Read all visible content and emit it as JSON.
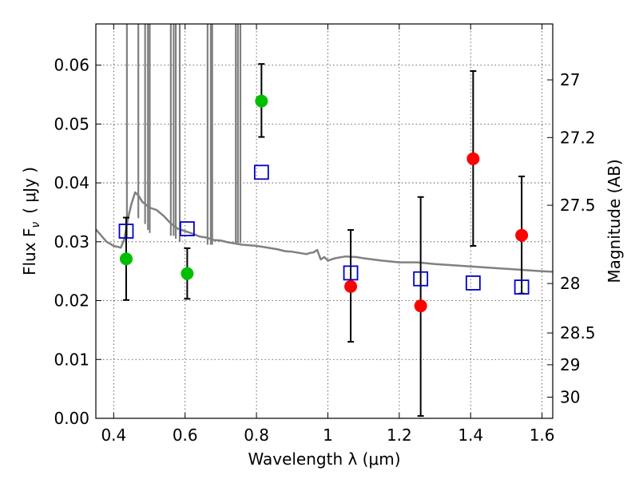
{
  "chart_data": {
    "type": "scatter",
    "xlabel": "Wavelength  λ (μm)",
    "ylabel": "Flux  F",
    "ylabel_sub": "ν",
    "ylabel_unit": "( μJy )",
    "y2label": "Magnitude (AB)",
    "xlim": [
      0.35,
      1.63
    ],
    "ylim": [
      0.0,
      0.067
    ],
    "grid": true,
    "x_ticks": [
      0.4,
      0.6,
      0.8,
      1.0,
      1.2,
      1.4,
      1.6
    ],
    "x_tick_labels": [
      "0.4",
      "0.6",
      "0.8",
      "1",
      "1.2",
      "1.4",
      "1.6"
    ],
    "y_ticks": [
      0.0,
      0.01,
      0.02,
      0.03,
      0.04,
      0.05,
      0.06
    ],
    "y_tick_labels": [
      "0.00",
      "0.01",
      "0.02",
      "0.03",
      "0.04",
      "0.05",
      "0.06"
    ],
    "y2_ticks": [
      {
        "label": "27",
        "flux": 0.0575
      },
      {
        "label": "27.2",
        "flux": 0.0477
      },
      {
        "label": "27.5",
        "flux": 0.0362
      },
      {
        "label": "28",
        "flux": 0.0229
      },
      {
        "label": "28.5",
        "flux": 0.0145
      },
      {
        "label": "29",
        "flux": 0.0091
      },
      {
        "label": "30",
        "flux": 0.0036
      }
    ],
    "colors": {
      "green": "#00bf00",
      "red": "#ff0000",
      "blue": "#0000cc",
      "model": "#808080",
      "errorbar": "#000000"
    },
    "series": [
      {
        "marker": "circle",
        "color": "green",
        "points": [
          {
            "x": 0.435,
            "y": 0.0271,
            "err_low": 0.0201,
            "err_high": 0.0341
          },
          {
            "x": 0.606,
            "y": 0.0246,
            "err_low": 0.0203,
            "err_high": 0.0289
          },
          {
            "x": 0.814,
            "y": 0.0539,
            "err_low": 0.0478,
            "err_high": 0.0602
          }
        ]
      },
      {
        "marker": "circle",
        "color": "red",
        "points": [
          {
            "x": 1.064,
            "y": 0.0224,
            "err_low": 0.013,
            "err_high": 0.032
          },
          {
            "x": 1.26,
            "y": 0.0191,
            "err_low": 0.0004,
            "err_high": 0.0376
          },
          {
            "x": 1.407,
            "y": 0.0441,
            "err_low": 0.0293,
            "err_high": 0.059
          },
          {
            "x": 1.543,
            "y": 0.0311,
            "err_low": 0.0212,
            "err_high": 0.0411
          }
        ]
      },
      {
        "marker": "square",
        "color": "blue",
        "points": [
          {
            "x": 0.435,
            "y": 0.0318
          },
          {
            "x": 0.606,
            "y": 0.0322
          },
          {
            "x": 0.814,
            "y": 0.0418
          },
          {
            "x": 1.064,
            "y": 0.0247
          },
          {
            "x": 1.26,
            "y": 0.0237
          },
          {
            "x": 1.407,
            "y": 0.023
          },
          {
            "x": 1.543,
            "y": 0.0223
          }
        ]
      }
    ],
    "model_curve": [
      [
        0.35,
        0.0321
      ],
      [
        0.38,
        0.03
      ],
      [
        0.4,
        0.0293
      ],
      [
        0.42,
        0.029
      ],
      [
        0.43,
        0.0305
      ],
      [
        0.44,
        0.034
      ],
      [
        0.45,
        0.0365
      ],
      [
        0.46,
        0.0384
      ],
      [
        0.47,
        0.0378
      ],
      [
        0.48,
        0.0368
      ],
      [
        0.5,
        0.0358
      ],
      [
        0.52,
        0.0354
      ],
      [
        0.54,
        0.0344
      ],
      [
        0.56,
        0.0331
      ],
      [
        0.58,
        0.0322
      ],
      [
        0.6,
        0.0318
      ],
      [
        0.62,
        0.0314
      ],
      [
        0.64,
        0.0309
      ],
      [
        0.66,
        0.0307
      ],
      [
        0.68,
        0.0303
      ],
      [
        0.7,
        0.0302
      ],
      [
        0.72,
        0.0299
      ],
      [
        0.74,
        0.0297
      ],
      [
        0.76,
        0.0295
      ],
      [
        0.78,
        0.0294
      ],
      [
        0.8,
        0.0293
      ],
      [
        0.82,
        0.0291
      ],
      [
        0.84,
        0.0289
      ],
      [
        0.86,
        0.0287
      ],
      [
        0.88,
        0.0284
      ],
      [
        0.9,
        0.0283
      ],
      [
        0.92,
        0.0281
      ],
      [
        0.94,
        0.0279
      ],
      [
        0.95,
        0.0281
      ],
      [
        0.96,
        0.0282
      ],
      [
        0.97,
        0.0286
      ],
      [
        0.98,
        0.027
      ],
      [
        0.99,
        0.0274
      ],
      [
        1.0,
        0.0268
      ],
      [
        1.02,
        0.0272
      ],
      [
        1.05,
        0.0275
      ],
      [
        1.08,
        0.0274
      ],
      [
        1.1,
        0.0272
      ],
      [
        1.15,
        0.0268
      ],
      [
        1.2,
        0.0265
      ],
      [
        1.25,
        0.0265
      ],
      [
        1.3,
        0.0262
      ],
      [
        1.35,
        0.026
      ],
      [
        1.4,
        0.0258
      ],
      [
        1.45,
        0.0256
      ],
      [
        1.5,
        0.0254
      ],
      [
        1.55,
        0.0252
      ],
      [
        1.6,
        0.025
      ],
      [
        1.63,
        0.0249
      ]
    ],
    "emission_lines": [
      {
        "x": 0.437,
        "y0": 0.0305,
        "y1": 0.067
      },
      {
        "x": 0.469,
        "y0": 0.034,
        "y1": 0.067
      },
      {
        "x": 0.488,
        "y0": 0.033,
        "y1": 0.067
      },
      {
        "x": 0.496,
        "y0": 0.032,
        "y1": 0.067
      },
      {
        "x": 0.501,
        "y0": 0.0315,
        "y1": 0.067
      },
      {
        "x": 0.56,
        "y0": 0.031,
        "y1": 0.067
      },
      {
        "x": 0.568,
        "y0": 0.031,
        "y1": 0.067
      },
      {
        "x": 0.574,
        "y0": 0.0305,
        "y1": 0.067
      },
      {
        "x": 0.585,
        "y0": 0.03,
        "y1": 0.067
      },
      {
        "x": 0.663,
        "y0": 0.0295,
        "y1": 0.067
      },
      {
        "x": 0.672,
        "y0": 0.0295,
        "y1": 0.067
      },
      {
        "x": 0.676,
        "y0": 0.0295,
        "y1": 0.067
      }
    ]
  }
}
